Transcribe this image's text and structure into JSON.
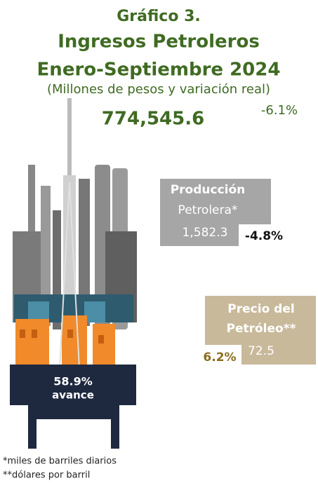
{
  "header": {
    "figure": "Gráfico 3.",
    "title": "Ingresos Petroleros",
    "period": "Enero-Septiembre 2024",
    "subtitle": "(Millones de pesos y variación real)"
  },
  "total": {
    "value": "774,545.6",
    "change": "-6.1%"
  },
  "production": {
    "label_line1": "Producción",
    "label_line2": "Petrolera*",
    "value": "1,582.3",
    "change": "-4.8%"
  },
  "price": {
    "label_line1": "Precio del",
    "label_line2": "Petróleo**",
    "value": "72.5",
    "change": "6.2%"
  },
  "progress": {
    "value": "58.9%",
    "label": "avance"
  },
  "notes": [
    "*miles de barriles diarios",
    "**dólares por barril"
  ]
}
